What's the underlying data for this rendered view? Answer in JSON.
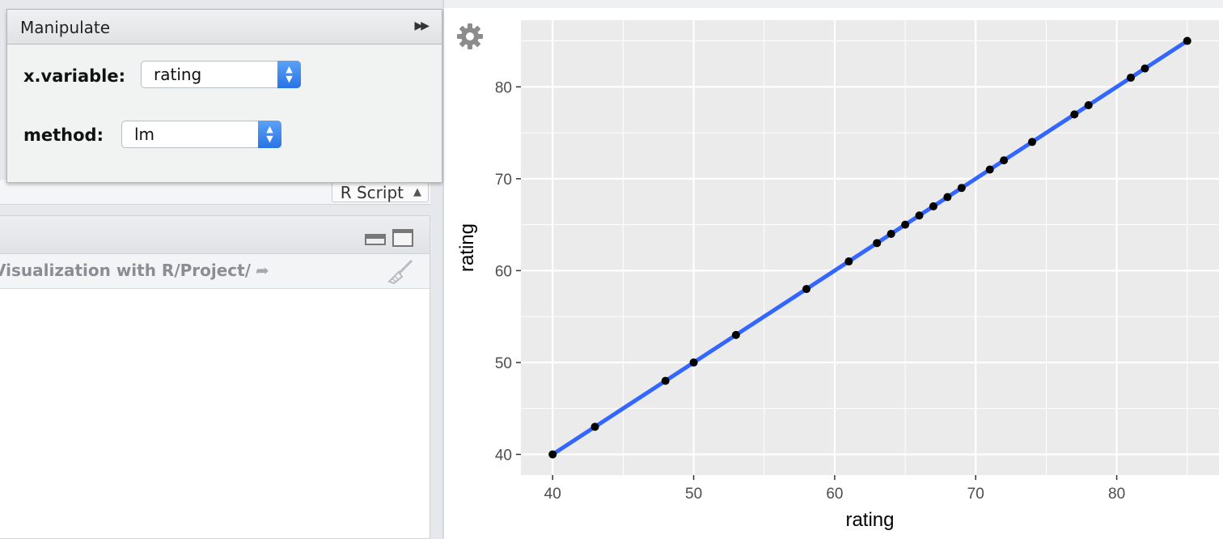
{
  "manipulate": {
    "title": "Manipulate",
    "controls": [
      {
        "label": "x.variable:",
        "value": "rating"
      },
      {
        "label": "method:",
        "value": "lm"
      }
    ]
  },
  "editor": {
    "file_type": "R Script"
  },
  "console": {
    "path": "Visualization with R/Project/"
  },
  "colors": {
    "panel_background": "#ebebeb",
    "grid": "#ffffff",
    "fit_line": "#3366ff",
    "points": "#000000"
  },
  "chart_data": {
    "type": "scatter",
    "xlabel": "rating",
    "ylabel": "rating",
    "xlim": [
      37.75,
      87.25
    ],
    "ylim": [
      37.75,
      87.25
    ],
    "x_ticks": [
      40,
      50,
      60,
      70,
      80
    ],
    "y_ticks": [
      40,
      50,
      60,
      70,
      80
    ],
    "grid": true,
    "smooth": {
      "method": "lm",
      "color": "#3366ff"
    },
    "points": [
      [
        40,
        40
      ],
      [
        43,
        43
      ],
      [
        48,
        48
      ],
      [
        50,
        50
      ],
      [
        53,
        53
      ],
      [
        58,
        58
      ],
      [
        61,
        61
      ],
      [
        63,
        63
      ],
      [
        64,
        64
      ],
      [
        65,
        65
      ],
      [
        66,
        66
      ],
      [
        67,
        67
      ],
      [
        68,
        68
      ],
      [
        69,
        69
      ],
      [
        71,
        71
      ],
      [
        72,
        72
      ],
      [
        74,
        74
      ],
      [
        77,
        77
      ],
      [
        78,
        78
      ],
      [
        81,
        81
      ],
      [
        82,
        82
      ],
      [
        85,
        85
      ]
    ]
  }
}
